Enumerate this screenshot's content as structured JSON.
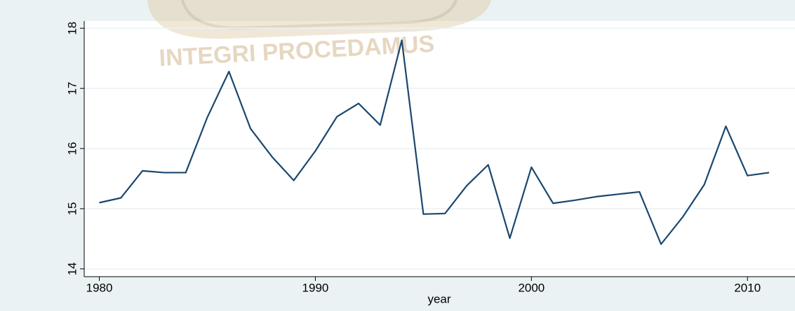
{
  "chart_data": {
    "type": "line",
    "watermark": "INTEGRI PROCEDAMUS",
    "x_label": "year",
    "x": [
      1980,
      1981,
      1982,
      1983,
      1984,
      1985,
      1986,
      1987,
      1988,
      1989,
      1990,
      1991,
      1992,
      1993,
      1994,
      1995,
      1996,
      1997,
      1998,
      1999,
      2000,
      2001,
      2002,
      2003,
      2004,
      2005,
      2006,
      2007,
      2008,
      2009,
      2010,
      2011
    ],
    "series": [
      {
        "name": null,
        "color": "#1a476f",
        "values": [
          15.1,
          15.18,
          15.63,
          15.6,
          15.6,
          16.52,
          17.28,
          16.33,
          15.86,
          15.47,
          15.96,
          16.53,
          16.75,
          16.39,
          17.8,
          14.91,
          14.92,
          15.38,
          15.73,
          14.51,
          15.69,
          15.09,
          15.14,
          15.2,
          15.24,
          15.28,
          14.41,
          14.86,
          15.4,
          16.37,
          15.55,
          15.6
        ]
      }
    ],
    "xlim": [
      1979.3,
      2012.2
    ],
    "xticks": [
      1980,
      1990,
      2000,
      2010
    ],
    "ylim": [
      13.87,
      18.12
    ],
    "yticks": [
      14,
      15,
      16,
      17,
      18
    ],
    "grid": true
  }
}
